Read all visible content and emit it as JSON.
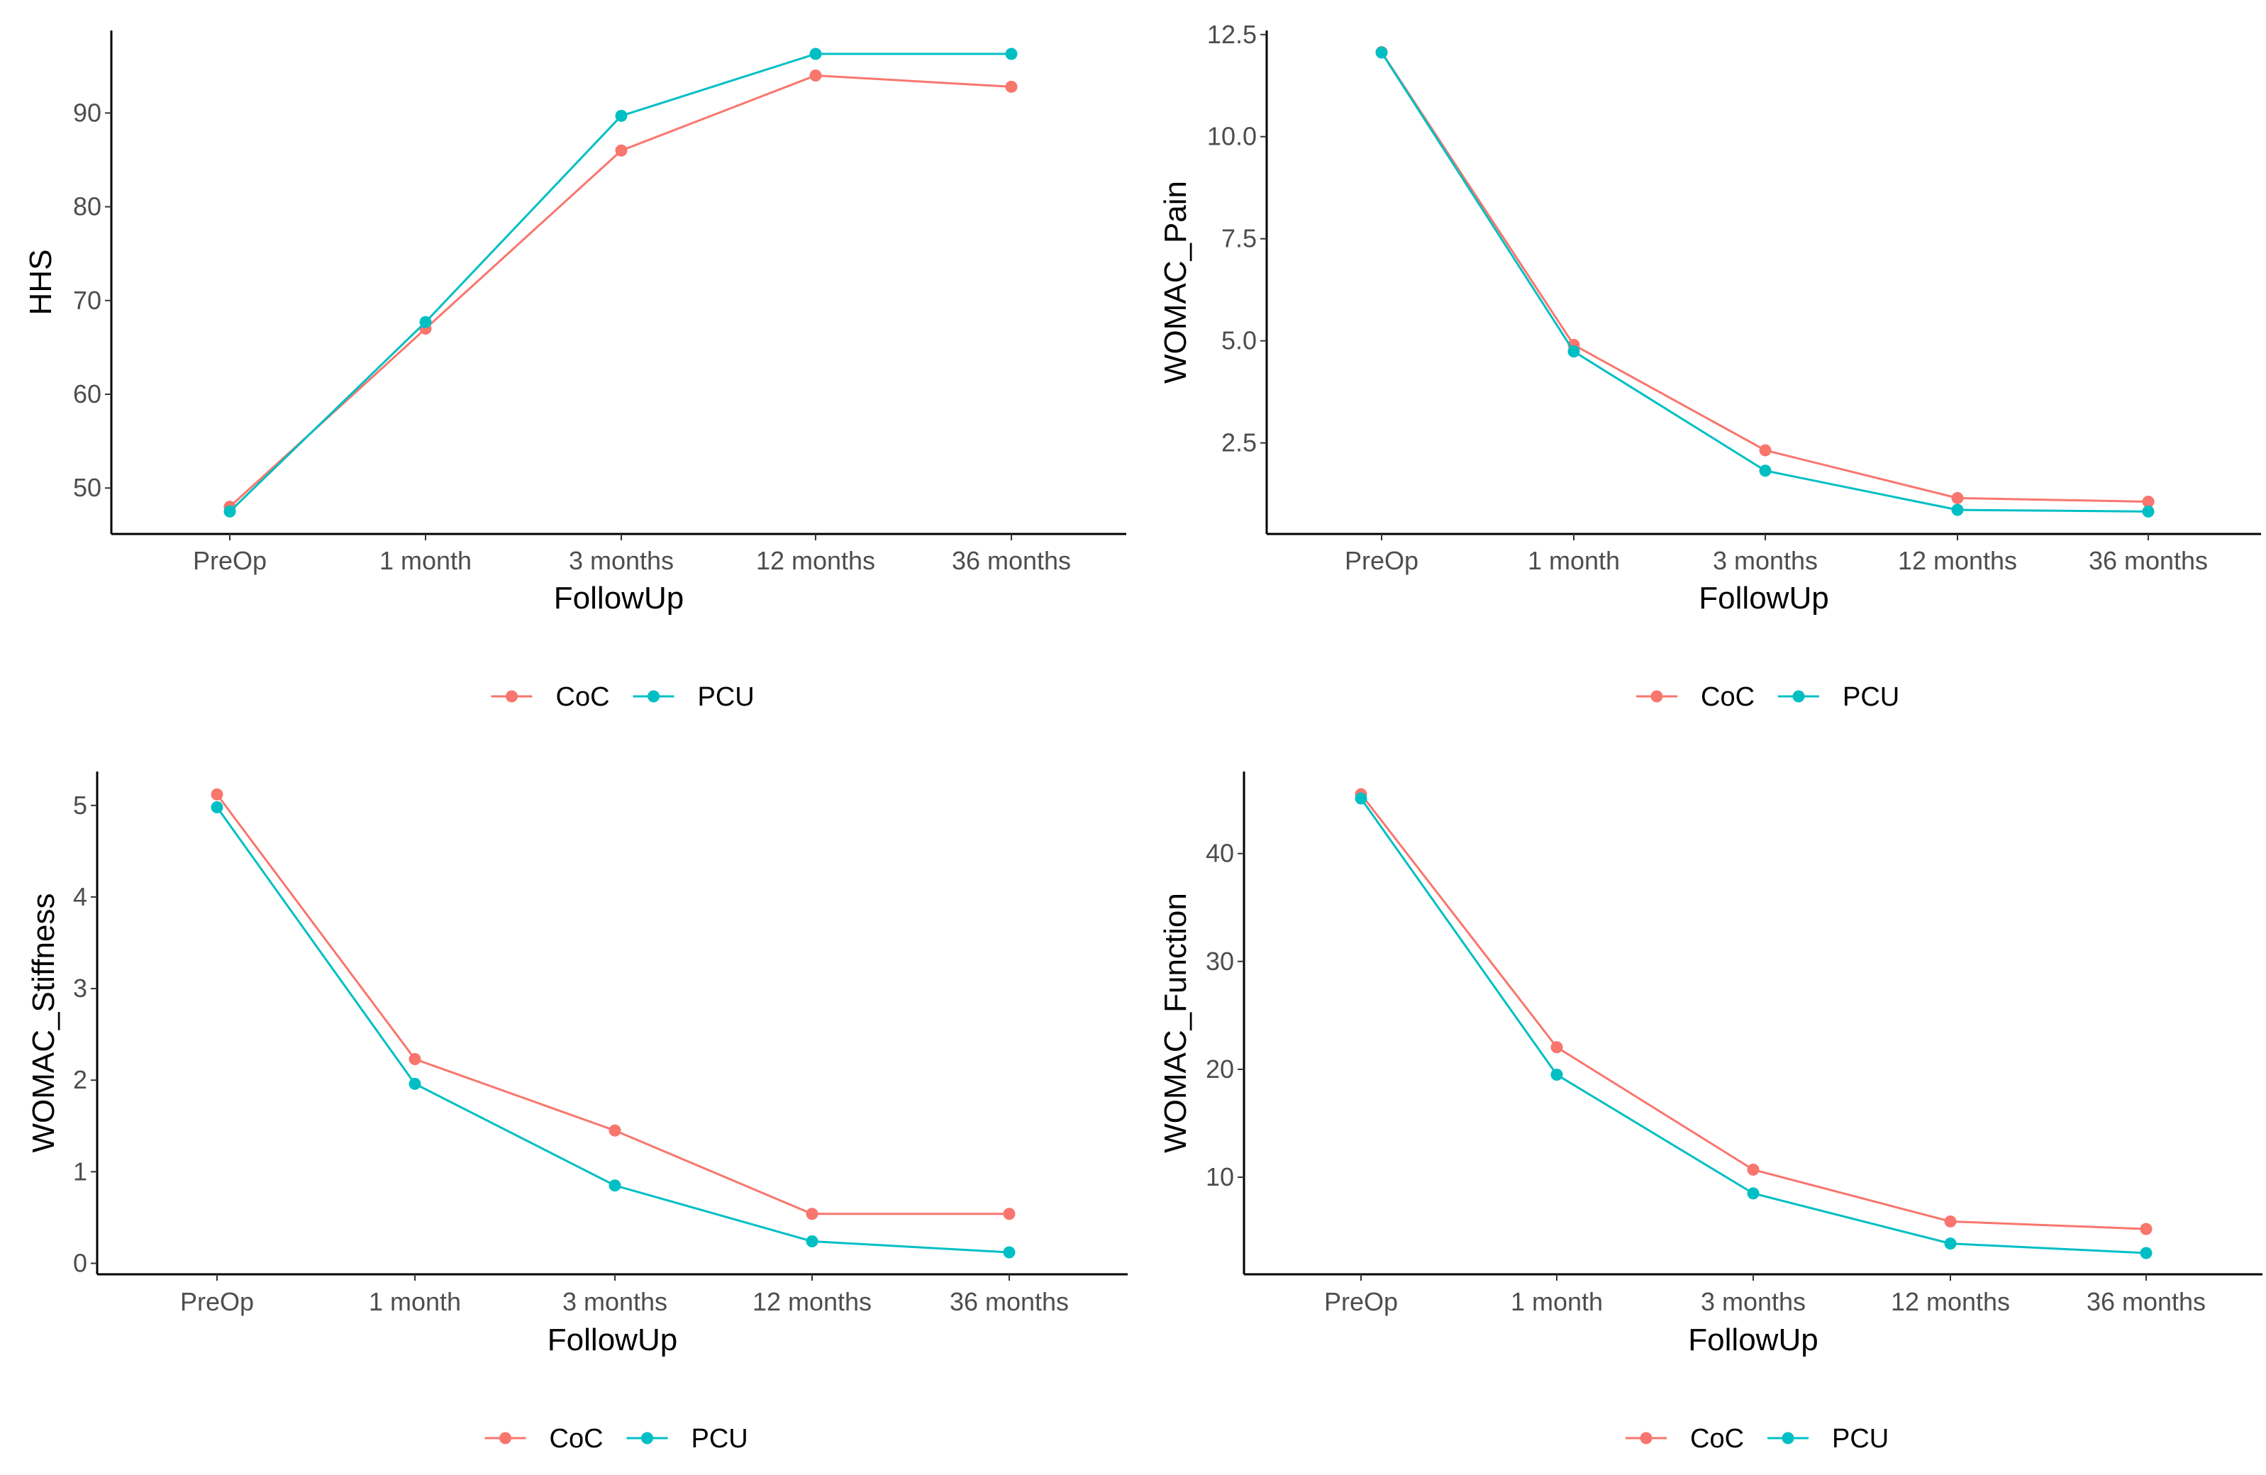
{
  "colors": {
    "CoC": "#F8766D",
    "PCU": "#00BFC4",
    "axis": "#000000",
    "tick_text": "#4d4d4d"
  },
  "chart_data": [
    {
      "type": "line",
      "title": "",
      "xlabel": "FollowUp",
      "ylabel": "HHS",
      "categories": [
        "PreOp",
        "1 month",
        "3 months",
        "12 months",
        "36 months"
      ],
      "yticks": [
        50,
        60,
        70,
        80,
        90
      ],
      "ytick_labels": [
        "50",
        "60",
        "70",
        "80",
        "90"
      ],
      "ylim": [
        45.1,
        98.8
      ],
      "grid": false,
      "legend": {
        "position": "bottom",
        "entries": [
          "CoC",
          "PCU"
        ]
      },
      "series": [
        {
          "name": "CoC",
          "values": [
            48.0,
            67.0,
            86.0,
            94.0,
            92.8
          ]
        },
        {
          "name": "PCU",
          "values": [
            47.5,
            67.7,
            89.7,
            96.3,
            96.3
          ]
        }
      ]
    },
    {
      "type": "line",
      "title": "",
      "xlabel": "FollowUp",
      "ylabel": "WOMAC_Pain",
      "categories": [
        "PreOp",
        "1 month",
        "3 months",
        "12 months",
        "36 months"
      ],
      "yticks": [
        2.5,
        5.0,
        7.5,
        10.0,
        12.5
      ],
      "ytick_labels": [
        "2.5",
        "5.0",
        "7.5",
        "10.0",
        "12.5"
      ],
      "ylim": [
        0.27,
        12.6
      ],
      "grid": false,
      "legend": {
        "position": "bottom",
        "entries": [
          "CoC",
          "PCU"
        ]
      },
      "series": [
        {
          "name": "CoC",
          "values": [
            12.07,
            4.9,
            2.32,
            1.15,
            1.06
          ]
        },
        {
          "name": "PCU",
          "values": [
            12.06,
            4.74,
            1.82,
            0.86,
            0.82
          ]
        }
      ]
    },
    {
      "type": "line",
      "title": "",
      "xlabel": "FollowUp",
      "ylabel": "WOMAC_Stiffness",
      "categories": [
        "PreOp",
        "1 month",
        "3 months",
        "12 months",
        "36 months"
      ],
      "yticks": [
        0,
        1,
        2,
        3,
        4,
        5
      ],
      "ytick_labels": [
        "0",
        "1",
        "2",
        "3",
        "4",
        "5"
      ],
      "ylim": [
        -0.12,
        5.37
      ],
      "grid": false,
      "legend": {
        "position": "bottom",
        "entries": [
          "CoC",
          "PCU"
        ]
      },
      "series": [
        {
          "name": "CoC",
          "values": [
            5.12,
            2.23,
            1.45,
            0.54,
            0.54
          ]
        },
        {
          "name": "PCU",
          "values": [
            4.98,
            1.96,
            0.85,
            0.24,
            0.12
          ]
        }
      ]
    },
    {
      "type": "line",
      "title": "",
      "xlabel": "FollowUp",
      "ylabel": "WOMAC_Function",
      "categories": [
        "PreOp",
        "1 month",
        "3 months",
        "12 months",
        "36 months"
      ],
      "yticks": [
        10,
        20,
        30,
        40
      ],
      "ytick_labels": [
        "10",
        "20",
        "30",
        "40"
      ],
      "ylim": [
        1.0,
        47.6
      ],
      "grid": false,
      "legend": {
        "position": "bottom",
        "entries": [
          "CoC",
          "PCU"
        ]
      },
      "series": [
        {
          "name": "CoC",
          "values": [
            45.5,
            22.05,
            10.7,
            5.9,
            5.2
          ]
        },
        {
          "name": "PCU",
          "values": [
            45.1,
            19.5,
            8.5,
            3.85,
            2.97
          ]
        }
      ]
    }
  ]
}
